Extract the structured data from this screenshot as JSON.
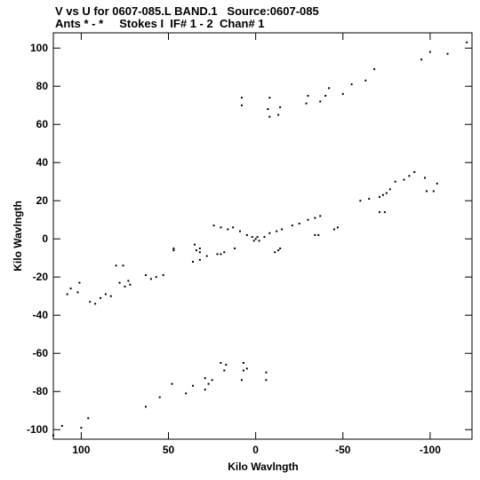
{
  "header": {
    "line1": "V vs U for 0607-085.L BAND.1   Source:0607-085",
    "line2": "Ants * - *     Stokes I  IF# 1 - 2  Chan# 1"
  },
  "chart_data": {
    "type": "scatter",
    "xlabel": "Kilo Wavlngth",
    "ylabel": "Kilo Wavlngth",
    "xlim": [
      116,
      -124
    ],
    "ylim": [
      -105,
      108
    ],
    "xticks": [
      100,
      50,
      0,
      -50,
      -100
    ],
    "yticks": [
      100,
      80,
      60,
      40,
      20,
      0,
      -20,
      -40,
      -60,
      -80,
      -100
    ],
    "grid": false,
    "series": [
      {
        "values": [
          [
            -121,
            103
          ],
          [
            -110,
            97
          ],
          [
            -100,
            98
          ],
          [
            -95,
            94
          ],
          [
            -68,
            89
          ],
          [
            -63,
            83
          ],
          [
            -55,
            81
          ],
          [
            -50,
            76
          ],
          [
            -42,
            79
          ],
          [
            -40,
            75
          ],
          [
            -37,
            72
          ],
          [
            -30,
            75
          ],
          [
            -29,
            71
          ],
          [
            -14,
            69
          ],
          [
            -13,
            65
          ],
          [
            -7,
            68
          ],
          [
            -8,
            64
          ],
          [
            -8,
            74
          ],
          [
            8,
            74
          ],
          [
            8,
            70
          ],
          [
            -104,
            29
          ],
          [
            -102,
            25
          ],
          [
            -98,
            25
          ],
          [
            -97,
            32
          ],
          [
            -91,
            35
          ],
          [
            -88,
            33
          ],
          [
            -85,
            31
          ],
          [
            -80,
            30
          ],
          [
            -77,
            26
          ],
          [
            -75,
            24
          ],
          [
            -73,
            23
          ],
          [
            -71,
            22
          ],
          [
            -74,
            14
          ],
          [
            -71,
            14
          ],
          [
            -65,
            21
          ],
          [
            -60,
            20
          ],
          [
            -47,
            6
          ],
          [
            -45,
            5
          ],
          [
            -36,
            2
          ],
          [
            -34,
            2
          ],
          [
            -37,
            12
          ],
          [
            -34,
            11
          ],
          [
            -30,
            10
          ],
          [
            -25,
            8
          ],
          [
            -21,
            7
          ],
          [
            -15,
            5
          ],
          [
            -12,
            4
          ],
          [
            -8,
            3
          ],
          [
            -5,
            1
          ],
          [
            0,
            0
          ],
          [
            2,
            1
          ],
          [
            -2,
            -1
          ],
          [
            1,
            -1
          ],
          [
            -1,
            1
          ],
          [
            -13,
            -6
          ],
          [
            -11,
            -7
          ],
          [
            -14,
            -5
          ],
          [
            5,
            2
          ],
          [
            9,
            4
          ],
          [
            13,
            6
          ],
          [
            16,
            5
          ],
          [
            20,
            6
          ],
          [
            24,
            7
          ],
          [
            34,
            -6
          ],
          [
            32,
            -5
          ],
          [
            32,
            -7
          ],
          [
            47,
            -5
          ],
          [
            47,
            -6
          ],
          [
            35,
            -3
          ],
          [
            36,
            -12
          ],
          [
            32,
            -11
          ],
          [
            28,
            -9
          ],
          [
            22,
            -8
          ],
          [
            20,
            -8
          ],
          [
            18,
            -7
          ],
          [
            12,
            -5
          ],
          [
            63,
            -19
          ],
          [
            60,
            -21
          ],
          [
            57,
            -20
          ],
          [
            53,
            -19
          ],
          [
            75,
            -25
          ],
          [
            78,
            -23
          ],
          [
            80,
            -14
          ],
          [
            76,
            -14
          ],
          [
            95,
            -33
          ],
          [
            92,
            -34
          ],
          [
            89,
            -31
          ],
          [
            86,
            -29
          ],
          [
            83,
            -30
          ],
          [
            102,
            -28
          ],
          [
            106,
            -26
          ],
          [
            108,
            -29
          ],
          [
            101,
            -23
          ],
          [
            73,
            -22
          ],
          [
            72,
            -24
          ],
          [
            20,
            -65
          ],
          [
            18,
            -69
          ],
          [
            17,
            -66
          ],
          [
            7,
            -65
          ],
          [
            7,
            -69
          ],
          [
            5,
            -68
          ],
          [
            -6,
            -70
          ],
          [
            -6,
            -74
          ],
          [
            8,
            -74
          ],
          [
            25,
            -74
          ],
          [
            27,
            -76
          ],
          [
            29,
            -79
          ],
          [
            29,
            -73
          ],
          [
            36,
            -77
          ],
          [
            40,
            -81
          ],
          [
            48,
            -76
          ],
          [
            55,
            -83
          ],
          [
            63,
            -88
          ],
          [
            96,
            -94
          ],
          [
            100,
            -99
          ],
          [
            111,
            -98
          ],
          [
            116,
            -103
          ]
        ]
      }
    ]
  }
}
